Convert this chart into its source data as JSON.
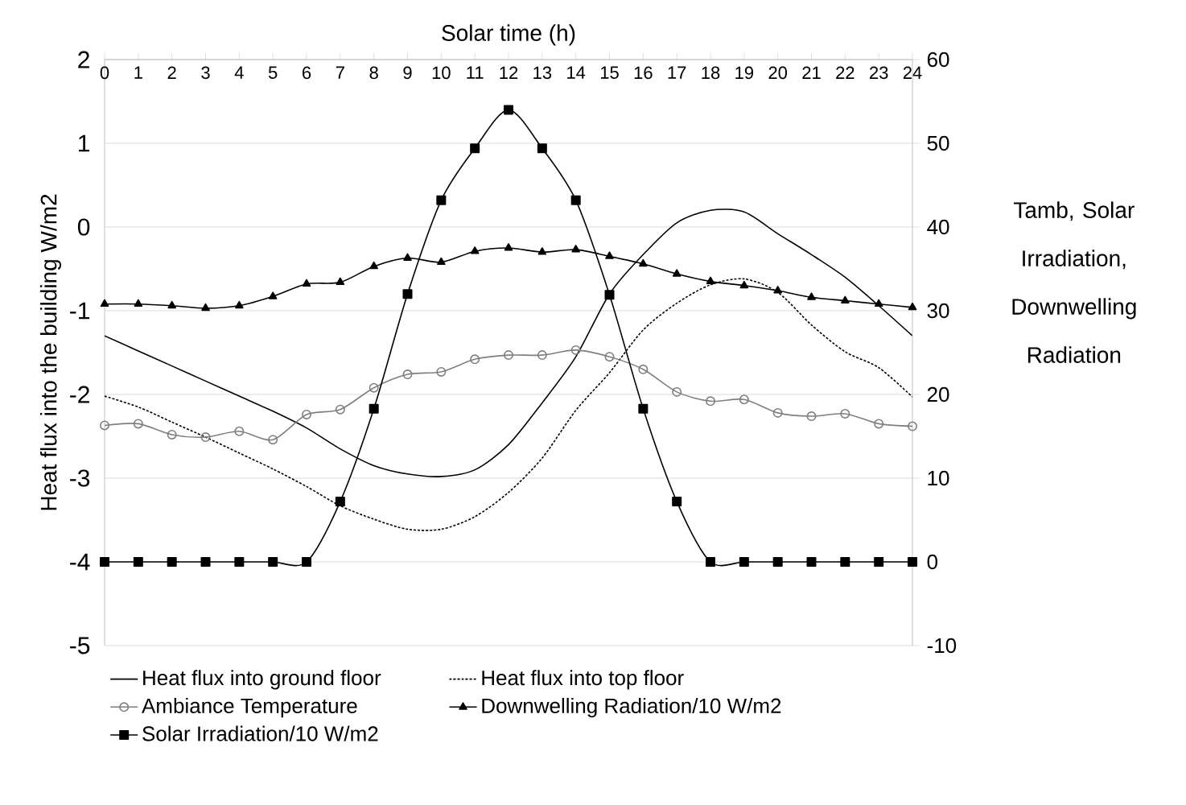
{
  "chart_data": {
    "type": "line",
    "xlabel": "Solar time (h)",
    "ylabel": "Heat flux into the building W/m2",
    "y2label": "Tamb, Solar Irradiation, Downwelling Radiation",
    "x": [
      0,
      1,
      2,
      3,
      4,
      5,
      6,
      7,
      8,
      9,
      10,
      11,
      12,
      13,
      14,
      15,
      16,
      17,
      18,
      19,
      20,
      21,
      22,
      23,
      24
    ],
    "xlim": [
      0,
      24
    ],
    "xticks": [
      0,
      1,
      2,
      3,
      4,
      5,
      6,
      7,
      8,
      9,
      10,
      11,
      12,
      13,
      14,
      15,
      16,
      17,
      18,
      19,
      20,
      21,
      22,
      23,
      24
    ],
    "ylim": [
      -5,
      2
    ],
    "yticks": [
      -5,
      -4,
      -3,
      -2,
      -1,
      0,
      1,
      2
    ],
    "y2lim": [
      -10,
      60
    ],
    "y2ticks": [
      -10,
      0,
      10,
      20,
      30,
      40,
      50,
      60
    ],
    "grid": "y",
    "legend": "bottom",
    "series": [
      {
        "name": "Heat flux into ground floor",
        "color": "#000000",
        "marker": "none",
        "line_style": "solid",
        "values": [
          -1.3,
          -1.48,
          -1.66,
          -1.84,
          -2.02,
          -2.2,
          -2.4,
          -2.65,
          -2.85,
          -2.95,
          -2.98,
          -2.9,
          -2.6,
          -2.1,
          -1.55,
          -0.8,
          -0.33,
          0.05,
          0.2,
          0.18,
          -0.08,
          -0.33,
          -0.6,
          -0.94,
          -1.3
        ]
      },
      {
        "name": "Heat flux into top floor",
        "color": "#000000",
        "marker": "none",
        "line_style": "dotted",
        "values": [
          -2.02,
          -2.15,
          -2.33,
          -2.51,
          -2.7,
          -2.89,
          -3.1,
          -3.33,
          -3.49,
          -3.61,
          -3.61,
          -3.46,
          -3.17,
          -2.76,
          -2.19,
          -1.74,
          -1.23,
          -0.91,
          -0.69,
          -0.62,
          -0.78,
          -1.17,
          -1.49,
          -1.68,
          -2.03
        ]
      },
      {
        "name": "Ambiance Temperature",
        "color": "#7f7f7f",
        "marker": "circle",
        "line_style": "solid",
        "axis": "y2",
        "values": [
          16.3,
          16.5,
          15.2,
          14.9,
          15.6,
          14.6,
          17.6,
          18.2,
          20.8,
          22.4,
          22.7,
          24.2,
          24.7,
          24.7,
          25.3,
          24.5,
          23,
          20.3,
          19.2,
          19.4,
          17.8,
          17.4,
          17.7,
          16.5,
          16.2
        ]
      },
      {
        "name": "Downwelling Radiation/10 W/m2",
        "color": "#000000",
        "marker": "triangle",
        "line_style": "solid",
        "axis": "y2",
        "values": [
          30.8,
          30.8,
          30.6,
          30.3,
          30.6,
          31.7,
          33.2,
          33.4,
          35.3,
          36.3,
          35.8,
          37.1,
          37.5,
          37,
          37.3,
          36.5,
          35.6,
          34.4,
          33.5,
          33,
          32.4,
          31.6,
          31.2,
          30.8,
          30.4
        ]
      },
      {
        "name": "Solar Irradiation/10 W/m2",
        "color": "#000000",
        "marker": "square",
        "line_style": "solid",
        "axis": "y2",
        "values": [
          0,
          0,
          0,
          0,
          0,
          0,
          0,
          7.2,
          18.3,
          32,
          43.2,
          49.4,
          54,
          49.4,
          43.2,
          31.9,
          18.3,
          7.2,
          0,
          0,
          0,
          0,
          0,
          0,
          0
        ]
      }
    ]
  }
}
